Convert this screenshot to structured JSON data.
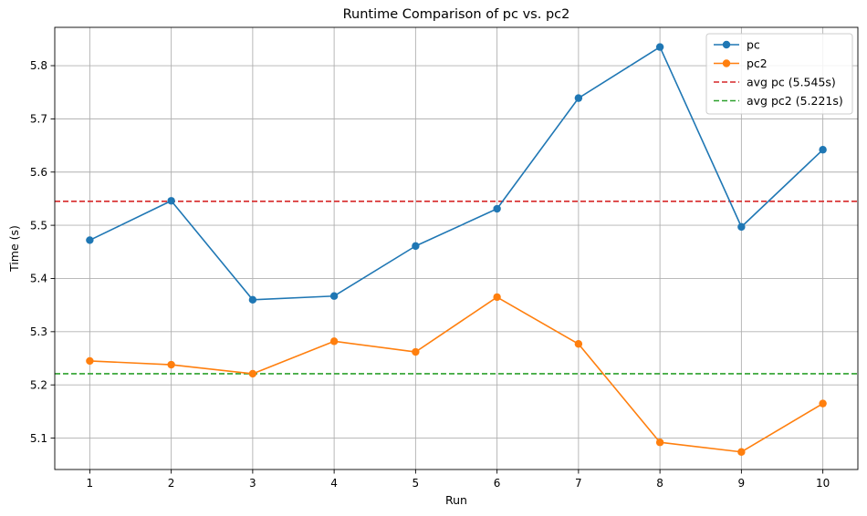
{
  "chart_data": {
    "type": "line",
    "title": "Runtime Comparison of pc vs. pc2",
    "xlabel": "Run",
    "ylabel": "Time (s)",
    "x": [
      1,
      2,
      3,
      4,
      5,
      6,
      7,
      8,
      9,
      10
    ],
    "xlim": [
      0.57,
      10.43
    ],
    "ylim": [
      5.041,
      5.872
    ],
    "xticks": [
      1,
      2,
      3,
      4,
      5,
      6,
      7,
      8,
      9,
      10
    ],
    "yticks": [
      5.1,
      5.2,
      5.3,
      5.4,
      5.5,
      5.6,
      5.7,
      5.8
    ],
    "grid": true,
    "legend_position": "upper right",
    "series": [
      {
        "name": "pc",
        "color": "#1f77b4",
        "style": "solid",
        "marker": "circle",
        "values": [
          5.472,
          5.546,
          5.36,
          5.367,
          5.461,
          5.531,
          5.739,
          5.835,
          5.497,
          5.642
        ]
      },
      {
        "name": "pc2",
        "color": "#ff7f0e",
        "style": "solid",
        "marker": "circle",
        "values": [
          5.245,
          5.238,
          5.221,
          5.282,
          5.262,
          5.365,
          5.277,
          5.092,
          5.074,
          5.165
        ]
      }
    ],
    "reference_lines": [
      {
        "name": "avg pc (5.545s)",
        "value": 5.545,
        "color": "#d62728",
        "style": "dashed"
      },
      {
        "name": "avg pc2 (5.221s)",
        "value": 5.221,
        "color": "#2ca02c",
        "style": "dashed"
      }
    ]
  }
}
